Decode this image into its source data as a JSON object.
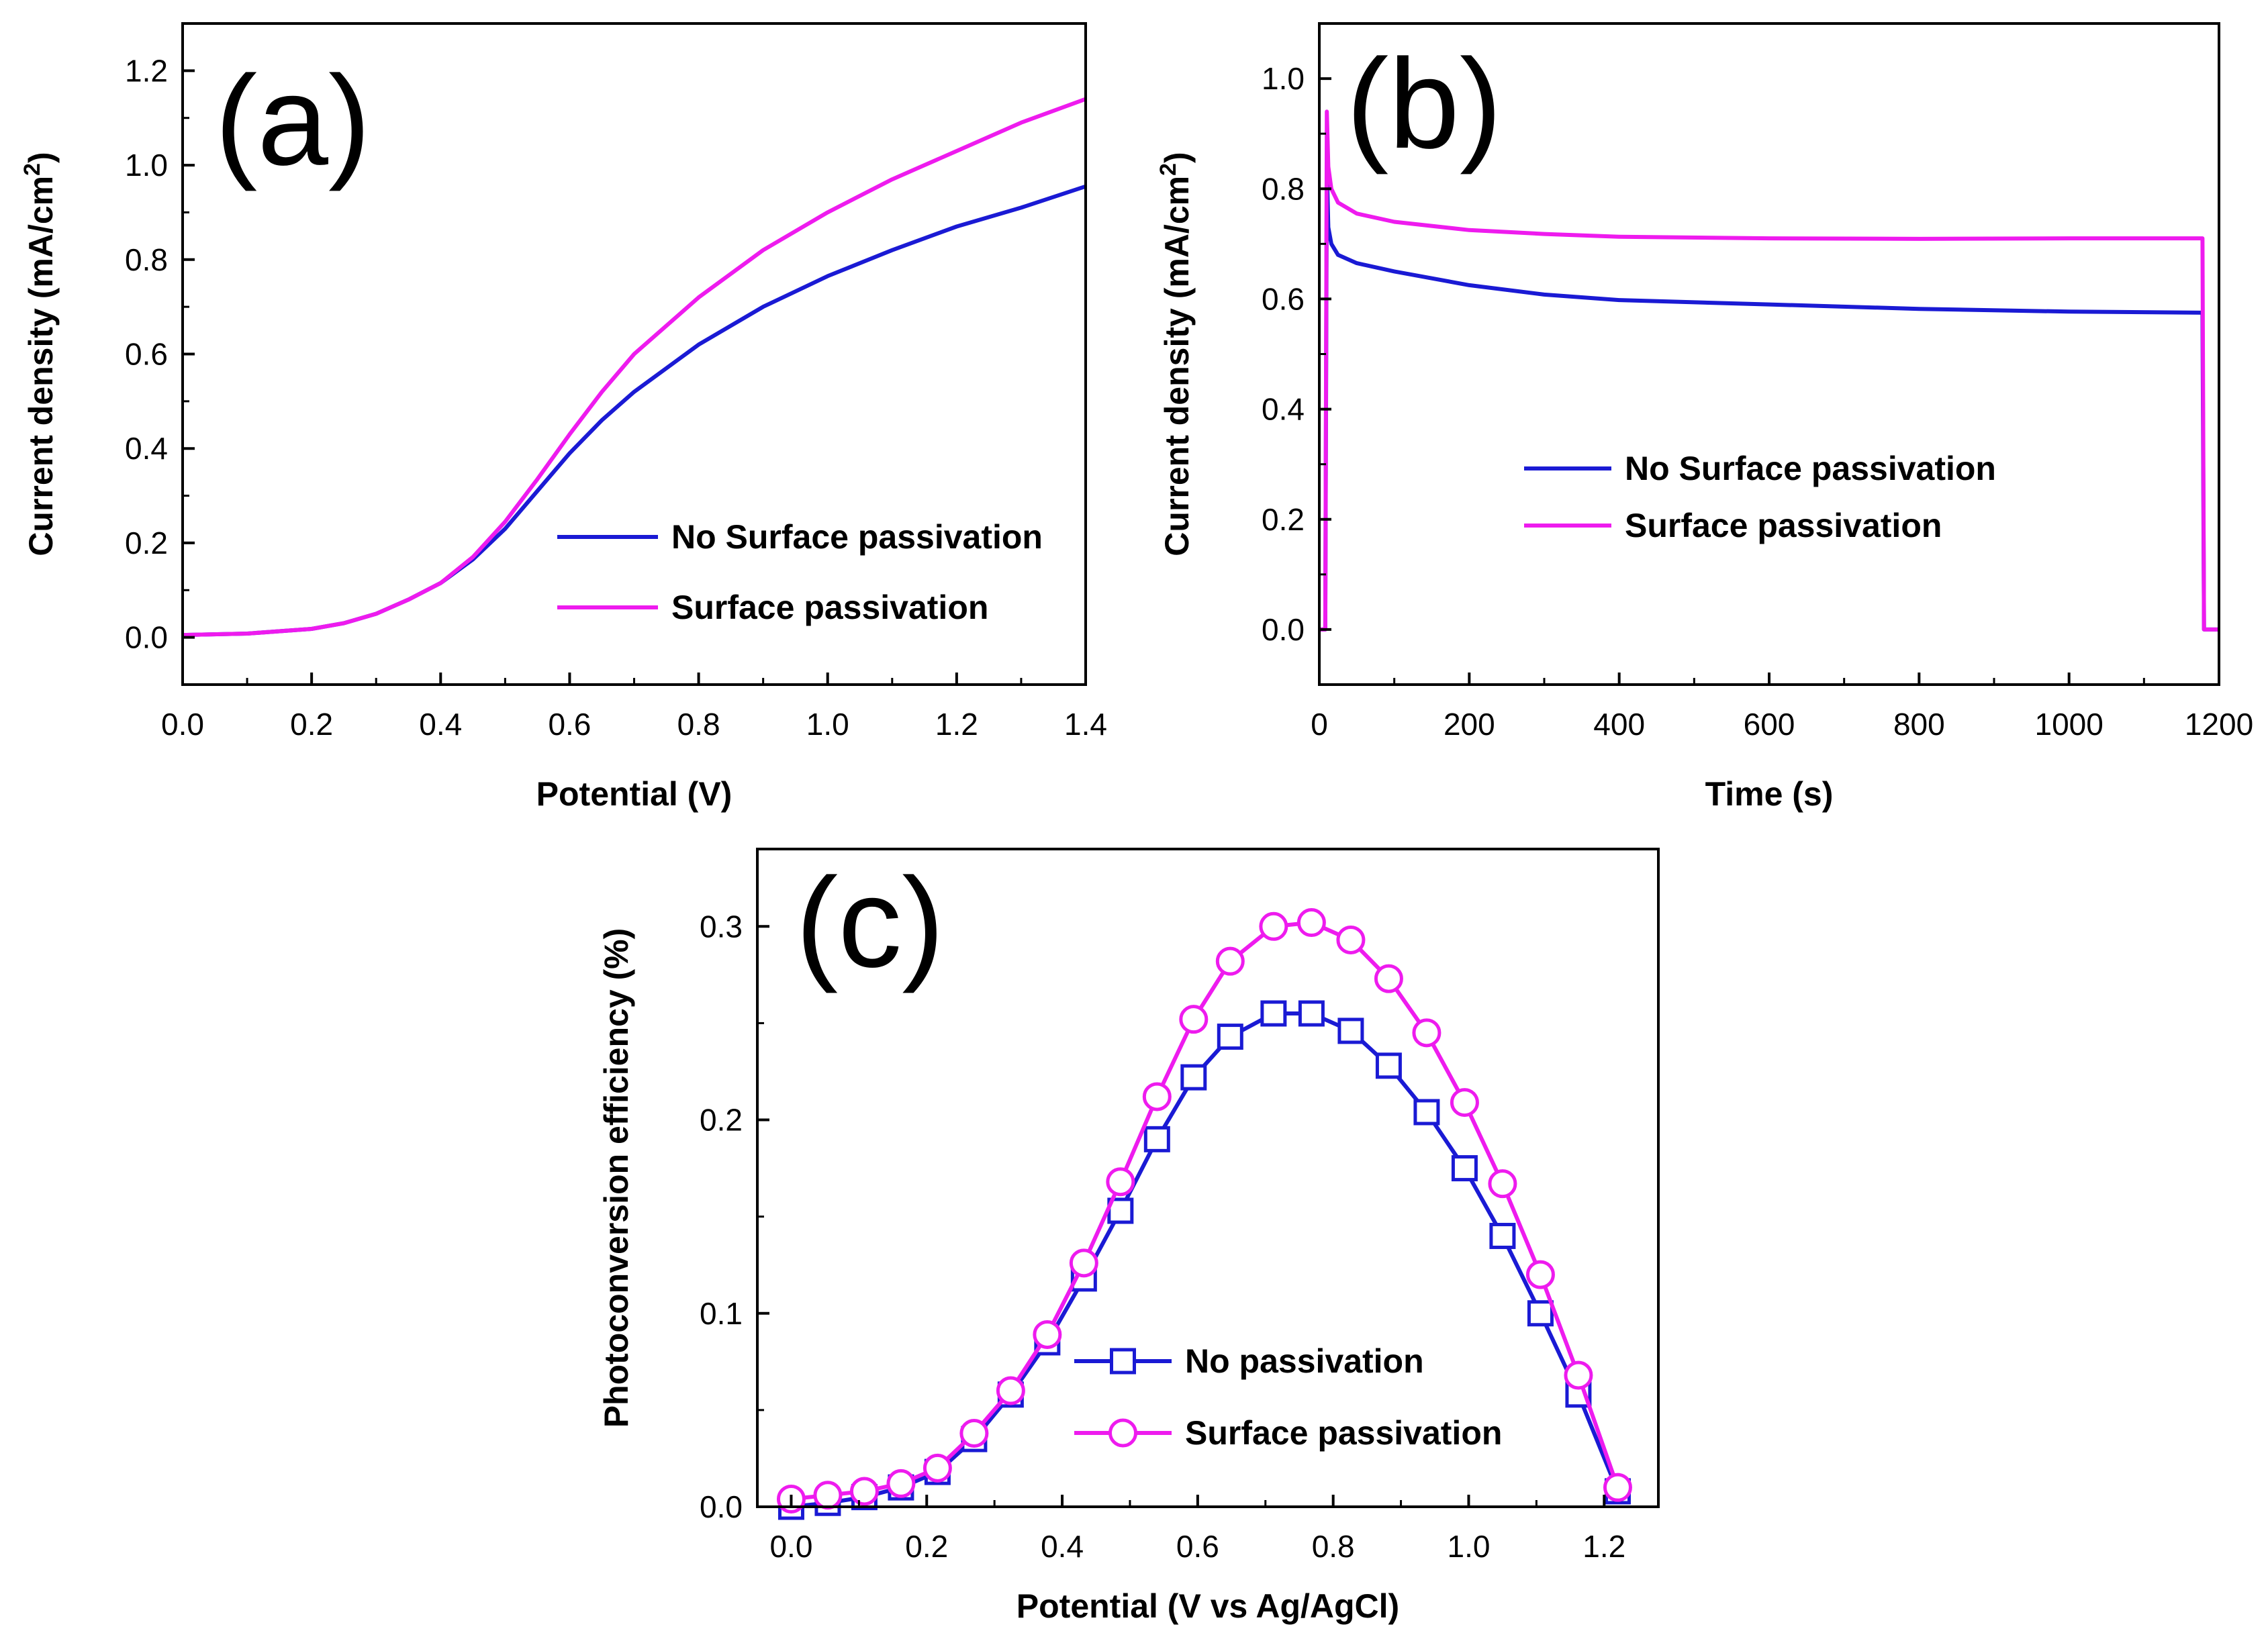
{
  "chart_data": [
    {
      "id": "a",
      "type": "line",
      "panel_label": "(a)",
      "xlabel": "Potential  (V)",
      "ylabel": "Current density (mA/cm",
      "ylabel_sup": "2",
      "ylabel_tail": ")",
      "xlim": [
        0.0,
        1.4
      ],
      "ylim": [
        -0.1,
        1.3
      ],
      "xticks": [
        "0.0",
        "0.2",
        "0.4",
        "0.6",
        "0.8",
        "1.0",
        "1.2",
        "1.4"
      ],
      "yticks": [
        "0.0",
        "0.2",
        "0.4",
        "0.6",
        "0.8",
        "1.0",
        "1.2"
      ],
      "grid": false,
      "legend_position": "center-right",
      "series": [
        {
          "name": "No Surface passivation",
          "color": "#1a1ad4",
          "x": [
            0.0,
            0.1,
            0.2,
            0.25,
            0.3,
            0.35,
            0.4,
            0.45,
            0.5,
            0.55,
            0.6,
            0.65,
            0.7,
            0.8,
            0.9,
            1.0,
            1.1,
            1.2,
            1.3,
            1.4
          ],
          "y": [
            0.005,
            0.008,
            0.018,
            0.03,
            0.05,
            0.08,
            0.115,
            0.165,
            0.23,
            0.31,
            0.39,
            0.46,
            0.52,
            0.62,
            0.7,
            0.765,
            0.82,
            0.87,
            0.91,
            0.955
          ]
        },
        {
          "name": "Surface passivation",
          "color": "#ee1bee",
          "x": [
            0.0,
            0.1,
            0.2,
            0.25,
            0.3,
            0.35,
            0.4,
            0.45,
            0.5,
            0.55,
            0.6,
            0.65,
            0.7,
            0.8,
            0.9,
            1.0,
            1.1,
            1.2,
            1.3,
            1.4
          ],
          "y": [
            0.005,
            0.008,
            0.018,
            0.03,
            0.05,
            0.08,
            0.115,
            0.17,
            0.245,
            0.335,
            0.43,
            0.52,
            0.6,
            0.72,
            0.82,
            0.9,
            0.97,
            1.03,
            1.09,
            1.14
          ]
        }
      ]
    },
    {
      "id": "b",
      "type": "line",
      "panel_label": "(b)",
      "xlabel": "Time (s)",
      "ylabel": "Current density (mA/cm",
      "ylabel_sup": "2",
      "ylabel_tail": ")",
      "xlim": [
        0,
        1200
      ],
      "ylim": [
        -0.1,
        1.1
      ],
      "xticks": [
        "0",
        "200",
        "400",
        "600",
        "800",
        "1000",
        "1200"
      ],
      "yticks": [
        "0.0",
        "0.2",
        "0.4",
        "0.6",
        "0.8",
        "1.0"
      ],
      "grid": false,
      "legend_position": "center",
      "series": [
        {
          "name": "No Surface passivation",
          "color": "#1a1ad4",
          "x": [
            0,
            8,
            10,
            12,
            16,
            25,
            50,
            100,
            200,
            300,
            400,
            600,
            800,
            1000,
            1178,
            1180,
            1182,
            1200
          ],
          "y": [
            0.0,
            0.0,
            0.84,
            0.73,
            0.7,
            0.68,
            0.665,
            0.65,
            0.625,
            0.608,
            0.598,
            0.59,
            0.582,
            0.577,
            0.575,
            0.0,
            0.0,
            0.0
          ]
        },
        {
          "name": "Surface passivation",
          "color": "#ee1bee",
          "x": [
            0,
            8,
            10,
            12,
            16,
            25,
            50,
            100,
            200,
            300,
            400,
            600,
            800,
            1000,
            1178,
            1180,
            1182,
            1200
          ],
          "y": [
            0.0,
            0.0,
            0.94,
            0.84,
            0.8,
            0.775,
            0.755,
            0.74,
            0.725,
            0.718,
            0.713,
            0.71,
            0.709,
            0.71,
            0.71,
            0.0,
            0.0,
            0.0
          ]
        }
      ]
    },
    {
      "id": "c",
      "type": "line",
      "panel_label": "(c)",
      "xlabel": "Potential (V vs Ag/AgCl)",
      "ylabel": "Photoconversion efficiency (%)",
      "xlim": [
        -0.05,
        1.28
      ],
      "ylim": [
        0.0,
        0.34
      ],
      "xticks": [
        "0.0",
        "0.2",
        "0.4",
        "0.6",
        "0.8",
        "1.0",
        "1.2"
      ],
      "yticks": [
        "0.0",
        "0.1",
        "0.2",
        "0.3"
      ],
      "grid": false,
      "legend_position": "lower-center",
      "series": [
        {
          "name": "No passivation",
          "color": "#1a1ad4",
          "marker": "square",
          "x": [
            0.0,
            0.054,
            0.108,
            0.162,
            0.216,
            0.27,
            0.324,
            0.378,
            0.432,
            0.486,
            0.54,
            0.594,
            0.648,
            0.712,
            0.768,
            0.826,
            0.882,
            0.938,
            0.994,
            1.05,
            1.106,
            1.162,
            1.22
          ],
          "y": [
            0.0,
            0.002,
            0.005,
            0.01,
            0.018,
            0.035,
            0.058,
            0.085,
            0.118,
            0.153,
            0.19,
            0.222,
            0.243,
            0.255,
            0.255,
            0.246,
            0.228,
            0.204,
            0.175,
            0.14,
            0.1,
            0.058,
            0.008
          ]
        },
        {
          "name": "Surface passivation",
          "color": "#ee1bee",
          "marker": "circle",
          "x": [
            0.0,
            0.054,
            0.108,
            0.162,
            0.216,
            0.27,
            0.324,
            0.378,
            0.432,
            0.486,
            0.54,
            0.594,
            0.648,
            0.712,
            0.768,
            0.826,
            0.882,
            0.938,
            0.994,
            1.05,
            1.106,
            1.162,
            1.22
          ],
          "y": [
            0.004,
            0.006,
            0.008,
            0.012,
            0.02,
            0.038,
            0.06,
            0.089,
            0.126,
            0.168,
            0.212,
            0.252,
            0.282,
            0.3,
            0.302,
            0.293,
            0.273,
            0.245,
            0.209,
            0.167,
            0.12,
            0.068,
            0.01
          ]
        }
      ]
    }
  ]
}
